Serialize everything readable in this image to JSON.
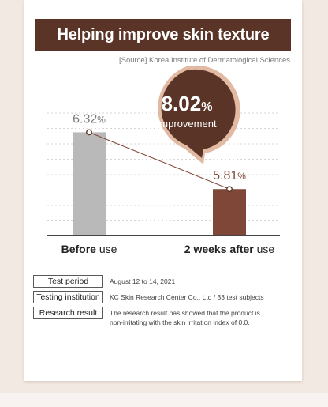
{
  "title": "Helping improve skin texture",
  "source": "[Source] Korea Institute of Dermatological Sciences",
  "colors": {
    "brand": "#5a3426",
    "bar_before": "#b9b9b9",
    "bar_after": "#7f4737",
    "bubble": "#5a3426",
    "bubble_ring": "#e2b9a2",
    "accent_text": "#7f4737"
  },
  "callout": {
    "value": "8.02",
    "unit": "%",
    "label": "improvement"
  },
  "chart_data": {
    "type": "bar",
    "categories": [
      "Before use",
      "2 weeks after use"
    ],
    "category_bold": [
      "Before",
      "2 weeks after"
    ],
    "category_rest": [
      " use",
      " use"
    ],
    "values": [
      6.32,
      5.81
    ],
    "value_labels": [
      "6.32",
      "5.81"
    ],
    "unit": "%",
    "ylim": [
      5.4,
      6.55
    ],
    "grid": true,
    "connector_line": true
  },
  "info": [
    {
      "label": "Test period",
      "value": "August 12 to 14, 2021"
    },
    {
      "label": "Testing institution",
      "value": "KC Skin Research Center Co., Ltd / 33 test subjects"
    },
    {
      "label": "Research result",
      "value": "The research result has showed that the product is non-irritating with the skin irritation index of 0.0."
    }
  ]
}
